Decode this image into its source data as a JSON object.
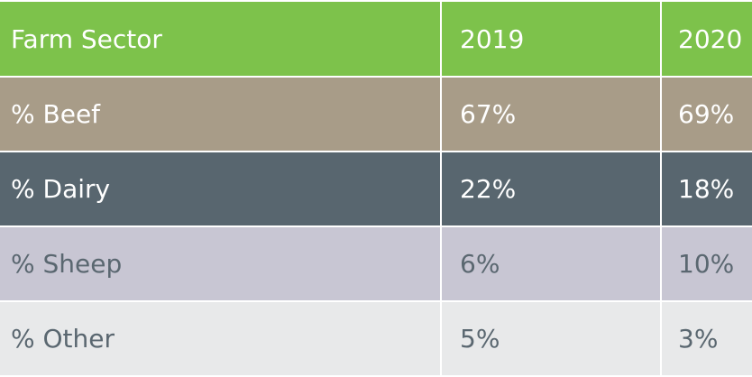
{
  "chart_data": {
    "type": "table",
    "columns": [
      "Farm Sector",
      "2019",
      "2020"
    ],
    "rows": [
      {
        "label": "% Beef",
        "values": [
          "67%",
          "69%"
        ],
        "color": "#a89c88",
        "text_color": "#ffffff"
      },
      {
        "label": "% Dairy",
        "values": [
          "22%",
          "18%"
        ],
        "color": "#58666f",
        "text_color": "#ffffff"
      },
      {
        "label": "% Sheep",
        "values": [
          "6%",
          "10%"
        ],
        "color": "#c8c6d3",
        "text_color": "#5a6770"
      },
      {
        "label": "% Other",
        "values": [
          "5%",
          "3%"
        ],
        "color": "#e8e9ea",
        "text_color": "#5a6770"
      }
    ],
    "header_color": "#7dc24b",
    "header_text_color": "#ffffff"
  }
}
